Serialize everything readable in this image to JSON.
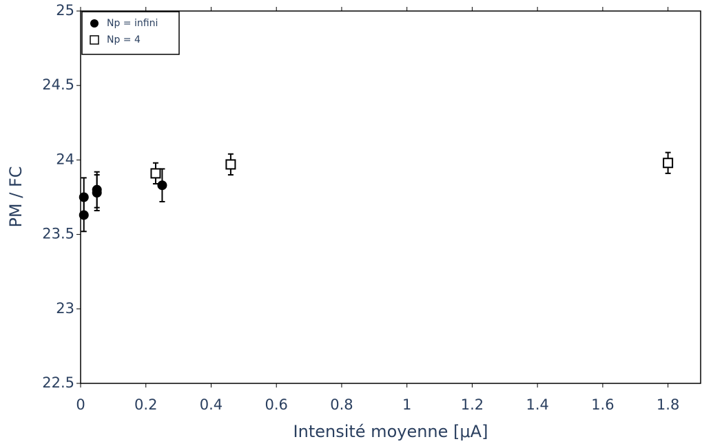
{
  "chart_data": {
    "type": "scatter",
    "x_label": "Intensité moyenne [μA]",
    "y_label": "PM / FC",
    "xlim": [
      0,
      1.9
    ],
    "ylim": [
      22.5,
      25
    ],
    "xticks": [
      0,
      0.2,
      0.4,
      0.6,
      0.8,
      1,
      1.2,
      1.4,
      1.6,
      1.8
    ],
    "yticks": [
      22.5,
      23,
      23.5,
      24,
      24.5,
      25
    ],
    "legend": "top-left",
    "series": [
      {
        "name": "Np = infini",
        "marker": "circle",
        "color": "#000000",
        "x": [
          0.01,
          0.01,
          0.05,
          0.05,
          0.25
        ],
        "values": [
          23.63,
          23.75,
          23.78,
          23.8,
          23.83
        ],
        "errors": [
          0.11,
          0.13,
          0.12,
          0.12,
          0.11
        ]
      },
      {
        "name": "Np = 4",
        "marker": "square",
        "color": "#000000",
        "x": [
          0.23,
          0.46,
          1.8
        ],
        "values": [
          23.91,
          23.97,
          23.98
        ],
        "errors": [
          0.07,
          0.07,
          0.07
        ]
      }
    ]
  }
}
